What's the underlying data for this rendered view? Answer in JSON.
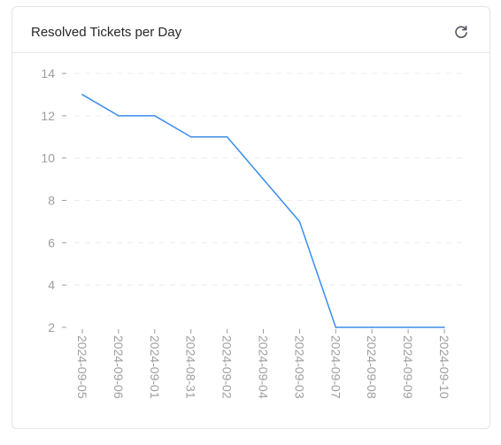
{
  "card": {
    "title": "Resolved Tickets per Day",
    "refresh_icon": "refresh-icon"
  },
  "colors": {
    "line": "#3b8eea",
    "grid": "#ececec",
    "tick_text": "#9e9e9e",
    "border": "#e4e4e7"
  },
  "chart_data": {
    "type": "line",
    "title": "",
    "xlabel": "",
    "ylabel": "",
    "categories": [
      "2024-09-05",
      "2024-09-06",
      "2024-09-01",
      "2024-08-31",
      "2024-09-02",
      "2024-09-04",
      "2024-09-03",
      "2024-09-07",
      "2024-09-08",
      "2024-09-09",
      "2024-09-10"
    ],
    "series": [
      {
        "values": [
          13,
          12,
          12,
          11,
          11,
          9,
          7,
          2,
          2,
          2,
          2
        ]
      }
    ],
    "ylim": [
      2,
      14
    ],
    "yticks": [
      2,
      4,
      6,
      8,
      10,
      12,
      14
    ],
    "grid": true,
    "legend": "none"
  }
}
